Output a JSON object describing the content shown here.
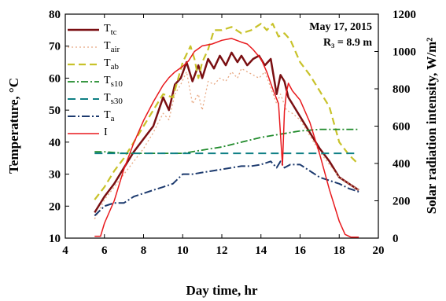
{
  "chart_data": {
    "type": "line",
    "xlabel": "Day time, hr",
    "ylabel": "Temperature, °C",
    "y2label": "Solar radiation intensity,  W/m²",
    "xlim": [
      4,
      20
    ],
    "ylim": [
      10,
      80
    ],
    "y2lim": [
      0,
      1200
    ],
    "xticks": [
      "4",
      "6",
      "8",
      "10",
      "12",
      "14",
      "16",
      "18",
      "20"
    ],
    "yticks": [
      "10",
      "20",
      "30",
      "40",
      "50",
      "60",
      "70",
      "80"
    ],
    "y2ticks": [
      "0",
      "200",
      "400",
      "600",
      "800",
      "1000",
      "1200"
    ],
    "annotation": {
      "date": "May 17, 2015",
      "radius": "R₃ = 8.9 m"
    },
    "legend_position": "top-left",
    "series": [
      {
        "name": "Ttc3",
        "legend_main": "T",
        "legend_sub": "tc",
        "color": "#7a0f12",
        "dash": "",
        "width": 2.5,
        "axis": "left",
        "x": [
          5.5,
          6.0,
          6.5,
          7.0,
          7.5,
          8.0,
          8.5,
          9.0,
          9.3,
          9.6,
          9.9,
          10.2,
          10.5,
          10.8,
          11.0,
          11.3,
          11.6,
          11.9,
          12.2,
          12.5,
          12.8,
          13.0,
          13.3,
          13.6,
          13.9,
          14.2,
          14.5,
          14.8,
          15.0,
          15.2,
          15.4,
          15.6,
          16.0,
          16.5,
          17.0,
          17.5,
          18.0,
          18.5,
          19.0
        ],
        "y": [
          18,
          23,
          27,
          32,
          37,
          41,
          45,
          54,
          50,
          58,
          60,
          65,
          59,
          64,
          60,
          66,
          63,
          67,
          64,
          68,
          65,
          67,
          64,
          66,
          67,
          64,
          66,
          55,
          61,
          59,
          54,
          52,
          48,
          43,
          38,
          34,
          29,
          27,
          25
        ]
      },
      {
        "name": "Tair3",
        "legend_main": "T",
        "legend_sub": "air",
        "color": "#e8a882",
        "dash": "2,3",
        "width": 1.3,
        "axis": "left",
        "x": [
          5.5,
          6.0,
          6.5,
          7.0,
          7.5,
          8.0,
          8.5,
          9.0,
          9.3,
          9.6,
          9.9,
          10.2,
          10.5,
          10.8,
          11.0,
          11.3,
          11.6,
          11.9,
          12.2,
          12.5,
          12.8,
          13.0,
          13.3,
          13.6,
          13.9,
          14.2,
          14.5,
          14.8,
          15.0,
          15.3,
          15.6,
          16.0,
          16.5,
          17.0,
          17.5,
          18.0,
          18.5,
          19.0
        ],
        "y": [
          16,
          22,
          26,
          30,
          34,
          38,
          43,
          49,
          47,
          55,
          58,
          62,
          52,
          55,
          50,
          59,
          58,
          60,
          59,
          62,
          60,
          63,
          62,
          61,
          60,
          62,
          57,
          52,
          55,
          50,
          49,
          47,
          42,
          37,
          33,
          29,
          27,
          25
        ]
      },
      {
        "name": "Tab3",
        "legend_main": "T",
        "legend_sub": "ab",
        "color": "#c8c22a",
        "dash": "9,5",
        "width": 2.2,
        "axis": "left",
        "x": [
          5.5,
          6.0,
          6.5,
          7.0,
          7.5,
          8.0,
          8.5,
          9.0,
          9.5,
          10.0,
          10.4,
          10.6,
          10.8,
          11.0,
          11.3,
          11.6,
          12.0,
          12.5,
          13.0,
          13.5,
          14.0,
          14.3,
          14.6,
          14.9,
          15.2,
          15.5,
          16.0,
          16.5,
          17.0,
          17.5,
          18.0,
          18.5,
          19.0
        ],
        "y": [
          22,
          26,
          31,
          35,
          40,
          45,
          50,
          55,
          54,
          65,
          70,
          66,
          60,
          65,
          69,
          75,
          75,
          76,
          74,
          75,
          77,
          75,
          77,
          73,
          74,
          72,
          65,
          61,
          56,
          51,
          40,
          36,
          33
        ]
      },
      {
        "name": "Ts10_3",
        "legend_main": "T",
        "legend_sub": "s10",
        "color": "#1f8a2a",
        "dash": "9,3,2,3",
        "width": 1.8,
        "axis": "left",
        "x": [
          5.5,
          6.0,
          7.0,
          8.0,
          9.0,
          10.0,
          11.0,
          12.0,
          13.0,
          14.0,
          15.0,
          16.0,
          17.0,
          18.0,
          19.0
        ],
        "y": [
          37,
          37,
          36.5,
          36.5,
          36.5,
          36.5,
          37.5,
          38.5,
          40,
          41.5,
          42.5,
          43.5,
          44,
          44,
          44
        ]
      },
      {
        "name": "Ts30_3",
        "legend_main": "T",
        "legend_sub": "s30",
        "color": "#0e7f84",
        "dash": "10,6",
        "width": 2.0,
        "axis": "left",
        "x": [
          5.5,
          7.0,
          9.0,
          11.0,
          13.0,
          15.0,
          17.0,
          19.0
        ],
        "y": [
          36.5,
          36.5,
          36.5,
          36.5,
          36.5,
          36.5,
          36.5,
          36.5
        ]
      },
      {
        "name": "Ta",
        "legend_main": "T",
        "legend_sub": "a",
        "color": "#1c3a6e",
        "dash": "10,3,2,3",
        "width": 2.0,
        "axis": "left",
        "x": [
          5.5,
          6.0,
          6.5,
          7.0,
          7.5,
          8.0,
          8.5,
          9.0,
          9.5,
          10.0,
          10.5,
          11.0,
          11.5,
          12.0,
          12.5,
          13.0,
          13.5,
          14.0,
          14.5,
          14.8,
          15.0,
          15.2,
          15.5,
          16.0,
          16.5,
          17.0,
          17.5,
          18.0,
          18.5,
          19.0
        ],
        "y": [
          17,
          20,
          21,
          21,
          23,
          24,
          25,
          26,
          27,
          30,
          30,
          30.5,
          31,
          31.5,
          32,
          32.5,
          32.5,
          33,
          34,
          32,
          34,
          32,
          33,
          33,
          31,
          29,
          28,
          27,
          25.5,
          24.5
        ]
      },
      {
        "name": "I",
        "legend_main": "I",
        "legend_sub": "",
        "color": "#e8191d",
        "dash": "",
        "width": 1.5,
        "axis": "right",
        "x": [
          5.5,
          5.8,
          6.0,
          6.5,
          7.0,
          7.5,
          8.0,
          8.5,
          9.0,
          9.3,
          9.6,
          10.0,
          10.3,
          10.6,
          11.0,
          11.5,
          12.0,
          12.5,
          13.0,
          13.3,
          13.6,
          14.0,
          14.3,
          14.6,
          14.9,
          15.1,
          15.2,
          15.3,
          15.4,
          15.6,
          16.0,
          16.5,
          17.0,
          17.5,
          18.0,
          18.3,
          18.6,
          19.0
        ],
        "y": [
          10,
          10,
          80,
          200,
          370,
          510,
          630,
          730,
          820,
          860,
          890,
          920,
          950,
          1000,
          1030,
          1040,
          1060,
          1070,
          1050,
          1040,
          1010,
          960,
          890,
          800,
          720,
          390,
          680,
          780,
          830,
          790,
          740,
          620,
          450,
          260,
          90,
          20,
          5,
          5
        ]
      }
    ]
  }
}
